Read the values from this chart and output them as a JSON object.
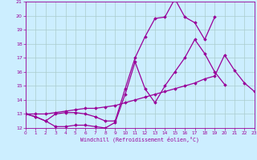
{
  "xlabel": "Windchill (Refroidissement éolien,°C)",
  "background_color": "#cceeff",
  "line_color": "#990099",
  "grid_color": "#aacccc",
  "xlim": [
    0,
    23
  ],
  "ylim": [
    12,
    21
  ],
  "yticks": [
    12,
    13,
    14,
    15,
    16,
    17,
    18,
    19,
    20,
    21
  ],
  "xticks": [
    0,
    1,
    2,
    3,
    4,
    5,
    6,
    7,
    8,
    9,
    10,
    11,
    12,
    13,
    14,
    15,
    16,
    17,
    18,
    19,
    20,
    21,
    22,
    23
  ],
  "series": [
    {
      "x": [
        0,
        1,
        2,
        3,
        4,
        5,
        6,
        7,
        8,
        9,
        10,
        11,
        12,
        13,
        14,
        15,
        16,
        17,
        18,
        19
      ],
      "y": [
        13.0,
        12.8,
        12.5,
        13.0,
        13.1,
        13.1,
        13.0,
        12.8,
        12.5,
        12.5,
        14.8,
        17.0,
        18.5,
        19.8,
        19.9,
        21.2,
        19.9,
        19.5,
        18.3,
        19.9
      ]
    },
    {
      "x": [
        0,
        1,
        2,
        3,
        4,
        5,
        6,
        7,
        8,
        9,
        10,
        11,
        12,
        13,
        14,
        15,
        16,
        17,
        18,
        19,
        20
      ],
      "y": [
        13.0,
        12.8,
        12.5,
        12.1,
        12.1,
        12.2,
        12.2,
        12.1,
        12.0,
        12.4,
        14.4,
        16.7,
        14.8,
        13.8,
        15.0,
        16.0,
        17.0,
        18.3,
        17.3,
        16.0,
        15.1
      ]
    },
    {
      "x": [
        0,
        1,
        2,
        3,
        4,
        5,
        6,
        7,
        8,
        9,
        10,
        11,
        12,
        13,
        14,
        15,
        16,
        17,
        18,
        19,
        20,
        21,
        22,
        23
      ],
      "y": [
        13.0,
        13.0,
        13.0,
        13.1,
        13.2,
        13.3,
        13.4,
        13.4,
        13.5,
        13.6,
        13.8,
        14.0,
        14.2,
        14.4,
        14.6,
        14.8,
        15.0,
        15.2,
        15.5,
        15.7,
        17.2,
        16.1,
        15.2,
        14.6
      ]
    }
  ]
}
